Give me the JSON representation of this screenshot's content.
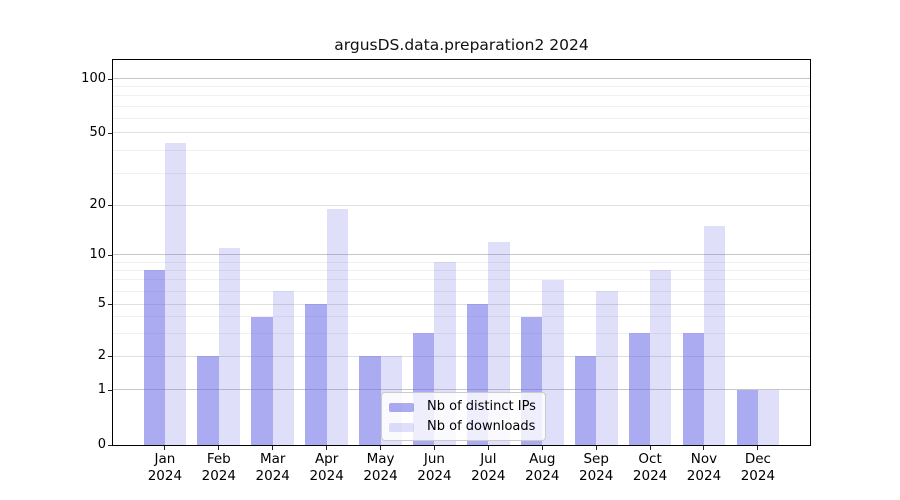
{
  "title": "argusDS.data.preparation2 2024",
  "legend": {
    "items": [
      {
        "label": "Nb of distinct IPs",
        "color": "rgba(102,102,230,0.55)"
      },
      {
        "label": "Nb of downloads",
        "color": "rgba(102,102,230,0.21)"
      }
    ],
    "position": "lower center inside plot"
  },
  "chart_data": {
    "type": "bar",
    "title": "argusDS.data.preparation2 2024",
    "categories": [
      "Jan 2024",
      "Feb 2024",
      "Mar 2024",
      "Apr 2024",
      "May 2024",
      "Jun 2024",
      "Jul 2024",
      "Aug 2024",
      "Sep 2024",
      "Oct 2024",
      "Nov 2024",
      "Dec 2024"
    ],
    "x_tick_months": [
      "Jan",
      "Feb",
      "Mar",
      "Apr",
      "May",
      "Jun",
      "Jul",
      "Aug",
      "Sep",
      "Oct",
      "Nov",
      "Dec"
    ],
    "x_tick_year": "2024",
    "series": [
      {
        "name": "Nb of distinct IPs",
        "color": "rgba(102,102,230,0.55)",
        "values": [
          8,
          2,
          4,
          5,
          2,
          3,
          5,
          4,
          2,
          3,
          3,
          1
        ]
      },
      {
        "name": "Nb of downloads",
        "color": "rgba(102,102,230,0.21)",
        "values": [
          44,
          11,
          6,
          19,
          2,
          9,
          12,
          7,
          6,
          8,
          15,
          1
        ]
      }
    ],
    "yticks": [
      0,
      1,
      2,
      5,
      10,
      20,
      50,
      100
    ],
    "minor_yticks": [
      3,
      4,
      6,
      7,
      8,
      9,
      30,
      40,
      60,
      70,
      80,
      90
    ],
    "xlabel": "",
    "ylabel": "",
    "ylim": [
      0,
      126
    ],
    "grid": true,
    "y_scale": "logarithmic above 1, linear from 0 to 1",
    "legend_position": "lower center inside plot",
    "colors": {
      "grid_decade": "#c7c7c7",
      "grid_labeled": "#dfdfdf",
      "grid_minor": "#f0f0f0",
      "spine": "#000000"
    }
  }
}
